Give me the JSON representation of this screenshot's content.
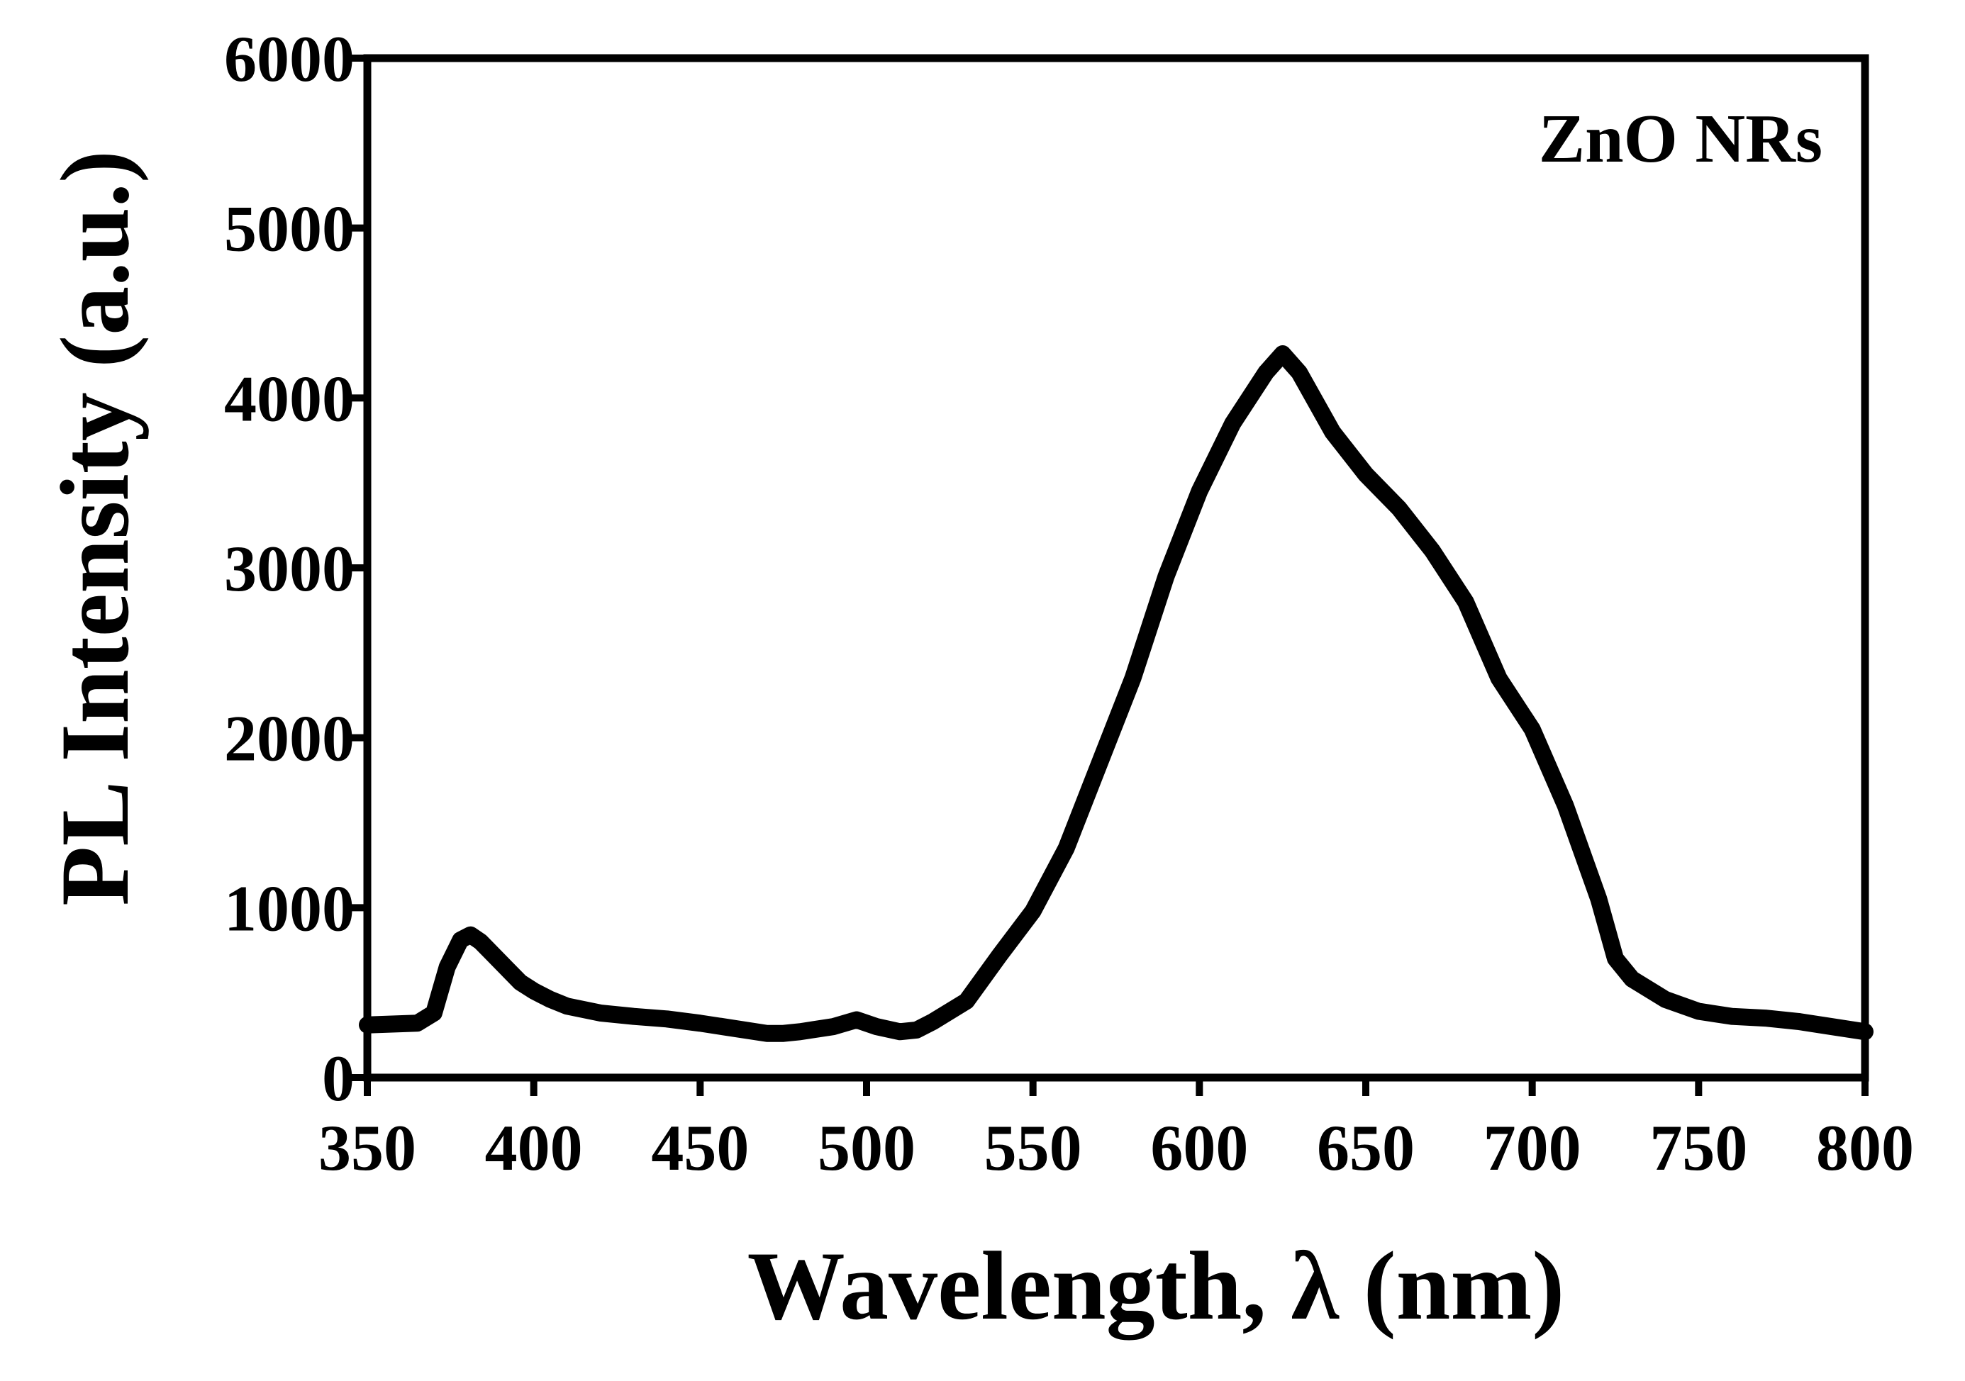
{
  "chart_data": {
    "type": "line",
    "title": "",
    "xlabel": "Wavelength, λ (nm)",
    "ylabel": "PL Intensity (a.u.)",
    "annotation": "ZnO NRs",
    "xlim": [
      350,
      800
    ],
    "ylim": [
      0,
      6000
    ],
    "x_ticks": [
      "350",
      "400",
      "450",
      "500",
      "550",
      "600",
      "650",
      "700",
      "750",
      "800"
    ],
    "y_ticks": [
      "0",
      "1000",
      "2000",
      "3000",
      "4000",
      "5000",
      "6000"
    ],
    "grid": false,
    "series": [
      {
        "name": "ZnO NRs",
        "color": "#000000",
        "x": [
          350,
          365,
          370,
          374,
          378,
          381,
          384,
          388,
          392,
          396,
          400,
          405,
          410,
          420,
          430,
          440,
          450,
          460,
          470,
          475,
          480,
          490,
          497,
          503,
          510,
          515,
          520,
          530,
          540,
          550,
          560,
          570,
          580,
          590,
          600,
          610,
          620,
          625,
          630,
          640,
          650,
          660,
          670,
          680,
          690,
          700,
          710,
          720,
          725,
          730,
          740,
          750,
          760,
          770,
          780,
          790,
          800
        ],
        "values": [
          310,
          320,
          380,
          650,
          810,
          840,
          800,
          720,
          640,
          560,
          510,
          460,
          420,
          380,
          360,
          345,
          320,
          290,
          260,
          260,
          270,
          300,
          340,
          300,
          270,
          280,
          330,
          450,
          720,
          980,
          1350,
          1850,
          2350,
          2950,
          3450,
          3850,
          4150,
          4260,
          4150,
          3800,
          3550,
          3350,
          3100,
          2800,
          2350,
          2050,
          1600,
          1050,
          700,
          580,
          460,
          390,
          360,
          350,
          330,
          300,
          270
        ]
      }
    ]
  }
}
